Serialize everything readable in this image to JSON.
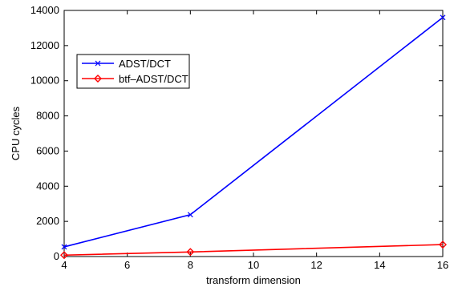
{
  "chart_data": {
    "type": "line",
    "title": "",
    "xlabel": "transform dimension",
    "ylabel": "CPU cycles",
    "xlim": [
      4,
      16
    ],
    "ylim": [
      0,
      14000
    ],
    "xticks": [
      4,
      6,
      8,
      10,
      12,
      14,
      16
    ],
    "yticks": [
      0,
      2000,
      4000,
      6000,
      8000,
      10000,
      12000,
      14000
    ],
    "grid": false,
    "legend_position": "upper-left",
    "series": [
      {
        "name": "ADST/DCT",
        "color": "#0000ff",
        "marker": "x",
        "x": [
          4,
          8,
          16
        ],
        "y": [
          550,
          2380,
          13600
        ]
      },
      {
        "name": "btf–ADST/DCT",
        "color": "#ff0000",
        "marker": "diamond",
        "x": [
          4,
          8,
          16
        ],
        "y": [
          80,
          260,
          680
        ]
      }
    ]
  }
}
